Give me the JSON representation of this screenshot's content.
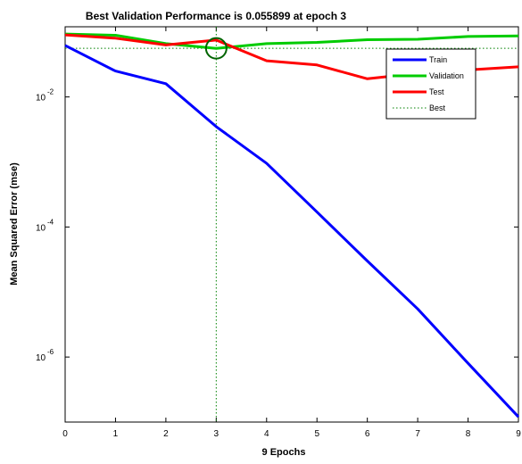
{
  "chart_data": {
    "type": "line",
    "title": "Best Validation Performance is 0.055899 at epoch 3",
    "xlabel": "9 Epochs",
    "ylabel": "Mean Squared Error  (mse)",
    "xlim": [
      0,
      9
    ],
    "ylim": [
      1e-07,
      0.12
    ],
    "yscale": "log",
    "x_ticks": [
      "0",
      "1",
      "2",
      "3",
      "4",
      "5",
      "6",
      "7",
      "8",
      "9"
    ],
    "y_ticks": [
      {
        "base": "10",
        "exp": "-2",
        "value": 0.01
      },
      {
        "base": "10",
        "exp": "-4",
        "value": 0.0001
      },
      {
        "base": "10",
        "exp": "-6",
        "value": 1e-06
      }
    ],
    "x": [
      0,
      1,
      2,
      3,
      4,
      5,
      6,
      7,
      8,
      9
    ],
    "series": [
      {
        "name": "Train",
        "color": "#0000ff",
        "values": [
          0.062,
          0.025,
          0.016,
          0.0035,
          0.00095,
          0.00017,
          3e-05,
          5.5e-06,
          8e-07,
          1.2e-07
        ]
      },
      {
        "name": "Validation",
        "color": "#00cc00",
        "values": [
          0.093,
          0.089,
          0.066,
          0.055899,
          0.066,
          0.069,
          0.076,
          0.077,
          0.085,
          0.087
        ]
      },
      {
        "name": "Test",
        "color": "#ff0000",
        "values": [
          0.09,
          0.08,
          0.063,
          0.075,
          0.036,
          0.031,
          0.019,
          0.023,
          0.026,
          0.029
        ]
      }
    ],
    "best": {
      "name": "Best",
      "color": "#008000",
      "epoch": 3,
      "value": 0.055899
    },
    "grid": false,
    "legend_position": "top-right"
  }
}
